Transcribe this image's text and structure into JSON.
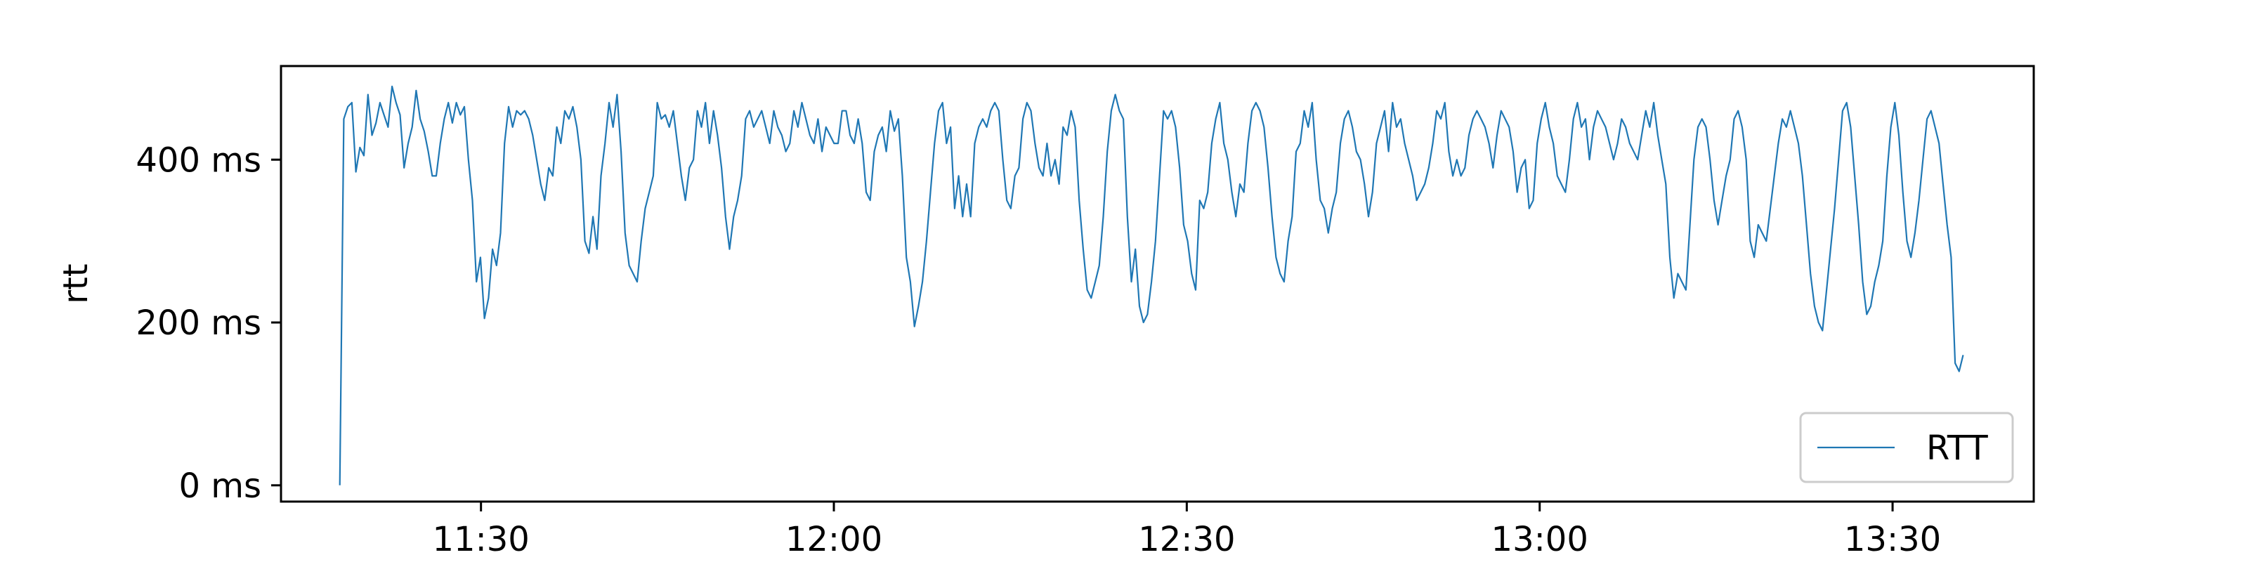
{
  "chart_data": {
    "type": "line",
    "title": "",
    "xlabel": "",
    "ylabel": "rtt",
    "x_start": "11:18",
    "x_end": "13:36",
    "xlim": [
      "11:13",
      "13:42"
    ],
    "ylim": [
      -20,
      515
    ],
    "x_ticks": [
      "11:30",
      "12:00",
      "12:30",
      "13:00",
      "13:30"
    ],
    "y_ticks": [
      {
        "value": 0,
        "label": "0 ms"
      },
      {
        "value": 200,
        "label": "200 ms"
      },
      {
        "value": 400,
        "label": "400 ms"
      }
    ],
    "grid": false,
    "legend_position": "bottom-right",
    "series": [
      {
        "name": "RTT",
        "color": "#1f77b4",
        "values": [
          0,
          450,
          465,
          470,
          385,
          415,
          405,
          480,
          430,
          445,
          470,
          455,
          440,
          490,
          470,
          455,
          390,
          420,
          440,
          485,
          450,
          435,
          410,
          380,
          380,
          420,
          450,
          470,
          445,
          470,
          455,
          465,
          400,
          350,
          250,
          280,
          205,
          230,
          290,
          270,
          310,
          420,
          465,
          440,
          460,
          455,
          460,
          450,
          430,
          400,
          370,
          350,
          390,
          380,
          440,
          420,
          460,
          450,
          465,
          440,
          400,
          300,
          285,
          330,
          290,
          380,
          420,
          470,
          440,
          480,
          410,
          310,
          270,
          260,
          250,
          300,
          340,
          360,
          380,
          470,
          450,
          455,
          440,
          460,
          420,
          380,
          350,
          390,
          400,
          460,
          440,
          470,
          420,
          460,
          430,
          390,
          330,
          290,
          330,
          350,
          380,
          450,
          460,
          440,
          450,
          460,
          440,
          420,
          460,
          440,
          430,
          410,
          420,
          460,
          440,
          470,
          450,
          430,
          420,
          450,
          410,
          440,
          430,
          420,
          420,
          460,
          460,
          430,
          420,
          450,
          420,
          360,
          350,
          410,
          430,
          440,
          410,
          460,
          435,
          450,
          380,
          280,
          250,
          195,
          220,
          250,
          300,
          360,
          420,
          460,
          470,
          420,
          440,
          340,
          380,
          330,
          370,
          330,
          420,
          440,
          450,
          440,
          460,
          470,
          460,
          400,
          350,
          340,
          380,
          390,
          450,
          470,
          460,
          420,
          390,
          380,
          420,
          380,
          400,
          370,
          440,
          430,
          460,
          440,
          350,
          290,
          240,
          230,
          250,
          270,
          330,
          410,
          460,
          480,
          460,
          450,
          330,
          250,
          290,
          220,
          200,
          210,
          250,
          300,
          380,
          460,
          450,
          460,
          440,
          390,
          320,
          300,
          260,
          240,
          350,
          340,
          360,
          420,
          450,
          470,
          420,
          400,
          360,
          330,
          370,
          360,
          420,
          460,
          470,
          460,
          440,
          390,
          330,
          280,
          260,
          250,
          300,
          330,
          410,
          420,
          460,
          440,
          470,
          400,
          350,
          340,
          310,
          340,
          360,
          420,
          450,
          460,
          440,
          410,
          400,
          370,
          330,
          360,
          420,
          440,
          460,
          410,
          470,
          440,
          450,
          420,
          400,
          380,
          350,
          360,
          370,
          390,
          420,
          460,
          450,
          470,
          410,
          380,
          400,
          380,
          390,
          430,
          450,
          460,
          450,
          440,
          420,
          390,
          430,
          460,
          450,
          440,
          410,
          360,
          390,
          400,
          340,
          350,
          420,
          450,
          470,
          440,
          420,
          380,
          370,
          360,
          400,
          450,
          470,
          440,
          450,
          400,
          440,
          460,
          450,
          440,
          420,
          400,
          420,
          450,
          440,
          420,
          410,
          400,
          430,
          460,
          440,
          470,
          430,
          400,
          370,
          280,
          230,
          260,
          250,
          240,
          320,
          400,
          440,
          450,
          440,
          400,
          350,
          320,
          350,
          380,
          400,
          450,
          460,
          440,
          400,
          300,
          280,
          320,
          310,
          300,
          340,
          380,
          420,
          450,
          440,
          460,
          440,
          420,
          380,
          320,
          260,
          220,
          200,
          190,
          240,
          290,
          340,
          400,
          460,
          470,
          440,
          380,
          320,
          250,
          210,
          220,
          250,
          270,
          300,
          380,
          440,
          470,
          430,
          360,
          300,
          280,
          310,
          350,
          400,
          450,
          460,
          440,
          420,
          370,
          320,
          280,
          150,
          140,
          160
        ]
      }
    ]
  }
}
